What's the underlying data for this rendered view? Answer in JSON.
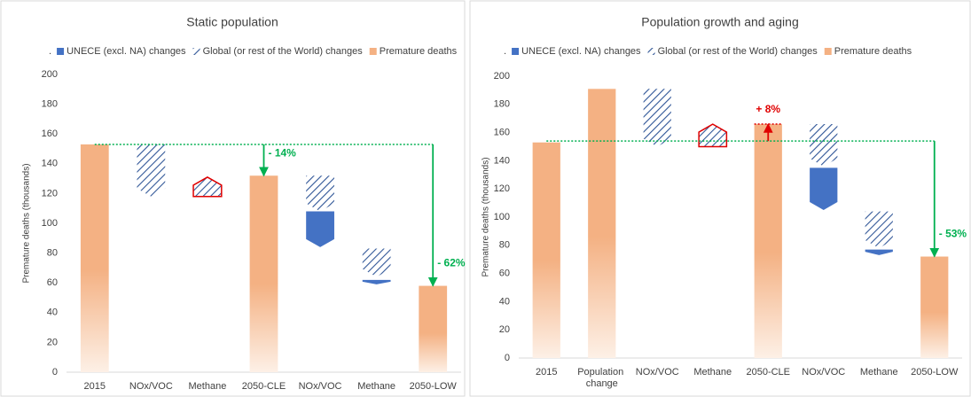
{
  "chart_data": [
    {
      "type": "waterfall",
      "title": "Static population",
      "y_label": "Premature deaths (thousands)",
      "legend_prefix": ".",
      "categories": [
        "2015",
        "NOx/VOC",
        "Methane",
        "2050-CLE",
        "NOx/VOC",
        "Methane",
        "2050-LOW"
      ],
      "ylim": [
        0,
        200
      ],
      "yticks": [
        0,
        20,
        40,
        60,
        80,
        100,
        120,
        140,
        160,
        180,
        200
      ],
      "grid": false,
      "increase_color": "#e00000",
      "series": [
        {
          "name": "UNECE (excl. NA) changes",
          "kind": "change",
          "color": "#4472c4",
          "pattern": "solid",
          "start": [
            null,
            null,
            null,
            null,
            108,
            62,
            null
          ],
          "values": [
            null,
            null,
            null,
            null,
            -24,
            -3,
            null
          ]
        },
        {
          "name": "Global (or rest of the World) changes",
          "kind": "change",
          "color": "#2f5597",
          "pattern": "hatch",
          "start": [
            null,
            153,
            118,
            null,
            132,
            83,
            null
          ],
          "values": [
            null,
            -35,
            13,
            null,
            -24,
            -19,
            null
          ]
        },
        {
          "name": "Premature deaths",
          "kind": "total",
          "color": "#f4b183",
          "values": [
            153,
            null,
            null,
            132,
            null,
            null,
            58
          ]
        }
      ],
      "reference": {
        "value": 153,
        "color": "#00b050"
      },
      "annotations": [
        {
          "text": "- 14%",
          "category": "2050-CLE",
          "from": 153,
          "to": 132,
          "color": "#00b050"
        },
        {
          "text": "- 62%",
          "category": "2050-LOW",
          "from": 153,
          "to": 58,
          "color": "#00b050"
        }
      ]
    },
    {
      "type": "waterfall",
      "title": "Population growth and aging",
      "y_label": "Premature deaths (thousands)",
      "legend_prefix": ".",
      "categories": [
        "2015",
        "Population change",
        "NOx/VOC",
        "Methane",
        "2050-CLE",
        "NOx/VOC",
        "Methane",
        "2050-LOW"
      ],
      "ylim": [
        0,
        200
      ],
      "yticks": [
        0,
        20,
        40,
        60,
        80,
        100,
        120,
        140,
        160,
        180,
        200
      ],
      "grid": false,
      "increase_color": "#e00000",
      "series": [
        {
          "name": "UNECE (excl. NA) changes",
          "kind": "change",
          "color": "#4472c4",
          "pattern": "solid",
          "start": [
            null,
            null,
            null,
            null,
            null,
            135,
            77,
            null
          ],
          "values": [
            null,
            null,
            null,
            null,
            null,
            -30,
            -4,
            null
          ]
        },
        {
          "name": "Global (or rest of the World) changes",
          "kind": "change",
          "color": "#2f5597",
          "pattern": "hatch",
          "start": [
            null,
            null,
            191,
            150,
            null,
            166,
            104,
            null
          ],
          "values": [
            null,
            null,
            -41,
            16,
            null,
            -30,
            -26,
            null
          ]
        },
        {
          "name": "Premature deaths",
          "kind": "total",
          "color": "#f4b183",
          "values": [
            153,
            191,
            null,
            null,
            166,
            null,
            null,
            72
          ]
        }
      ],
      "reference": {
        "value": 154,
        "color": "#00b050"
      },
      "annotations": [
        {
          "text": "+ 8%",
          "category": "2050-CLE",
          "from": 154,
          "to": 166,
          "color": "#e00000"
        },
        {
          "text": "- 53%",
          "category": "2050-LOW",
          "from": 154,
          "to": 72,
          "color": "#00b050"
        }
      ]
    }
  ]
}
